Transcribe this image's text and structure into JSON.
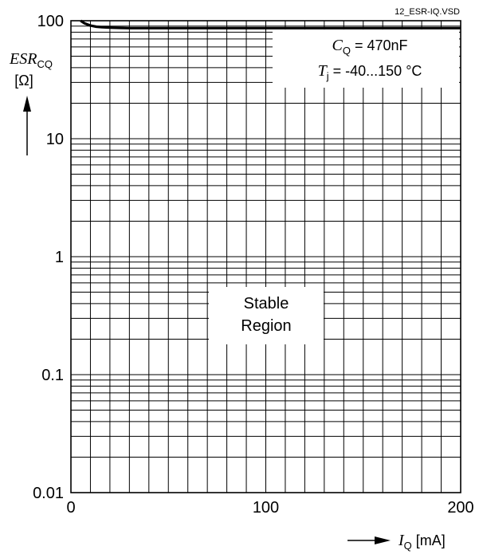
{
  "file_tag": "12_ESR-IQ.VSD",
  "chart_data": {
    "type": "line",
    "xlim": [
      0,
      200
    ],
    "ylim": [
      0.01,
      100
    ],
    "y_scale": "log",
    "grid": true,
    "x_ticks": [
      "0",
      "100",
      "200"
    ],
    "y_ticks": [
      "0.01",
      "0.1",
      "1",
      "10",
      "100"
    ],
    "y_tick_values": [
      0.01,
      0.1,
      1,
      10,
      100
    ],
    "x_tick_values": [
      0,
      100,
      200
    ],
    "ylabel": {
      "symbol": "ESR",
      "sub": "CQ",
      "unit": "[Ω]"
    },
    "xlabel": {
      "symbol": "I",
      "sub": "Q",
      "unit": " [mA]"
    },
    "annotation": {
      "line1_symbol": "C",
      "line1_sub": "Q",
      "line1_text": " = 470nF",
      "line2_symbol": "T",
      "line2_sub": "j",
      "line2_text": " = -40...150 °C"
    },
    "region_label": [
      "Stable",
      "Region"
    ],
    "series": [
      {
        "x": [
          5,
          7,
          10,
          13,
          16,
          20,
          25,
          30,
          40,
          60,
          100,
          150,
          200
        ],
        "y": [
          100,
          95,
          91,
          89,
          88,
          87.5,
          87,
          86.5,
          86.5,
          86.5,
          86.5,
          86.5,
          86.5
        ]
      }
    ]
  }
}
